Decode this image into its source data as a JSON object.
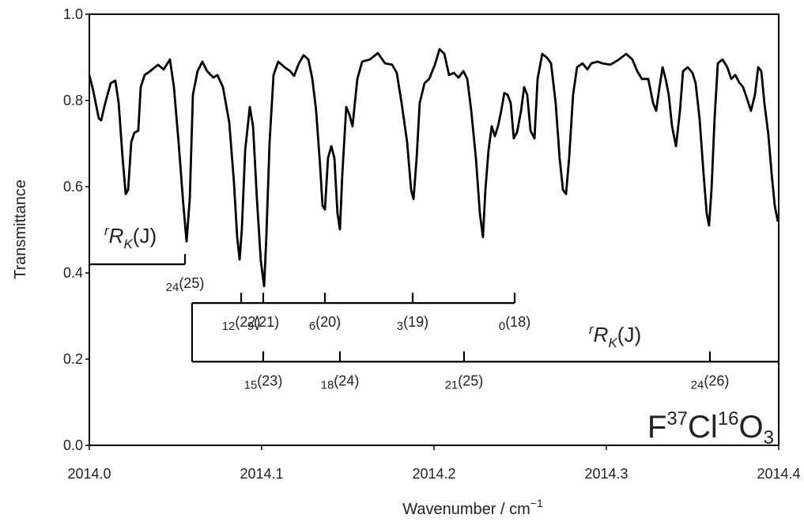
{
  "chart_data": {
    "type": "line",
    "ylabel": "Transmittance",
    "xlabel": {
      "main": "Wavenumber / cm",
      "sup": "−1"
    },
    "color": "#000000",
    "xlim": [
      2014.0,
      2014.4
    ],
    "xticks": [
      {
        "value": 2014,
        "label": "2014.0"
      },
      2014.1,
      2014.2,
      2014.3,
      2014.4
    ],
    "ylim": [
      0,
      1
    ],
    "yticks": [
      {
        "value": 0,
        "label": "0.0"
      },
      0.2,
      0.4,
      0.6,
      0.8,
      {
        "value": 1,
        "label": "1.0"
      }
    ],
    "x": [
      2014.0,
      2014.0023,
      2014.0055,
      2014.0069,
      2014.0092,
      2014.0124,
      2014.0151,
      2014.017,
      2014.0193,
      2014.0211,
      2014.0225,
      2014.0243,
      2014.0261,
      2014.0284,
      2014.0298,
      2014.0321,
      2014.0353,
      2014.0399,
      2014.0431,
      2014.0468,
      2014.0491,
      2014.0518,
      2014.0546,
      2014.0564,
      2014.0583,
      2014.0601,
      2014.0628,
      2014.0656,
      2014.0683,
      2014.072,
      2014.0743,
      2014.0775,
      2014.0812,
      2014.0839,
      2014.0858,
      2014.0872,
      2014.0885,
      2014.0904,
      2014.0931,
      2014.095,
      2014.0972,
      2014.0995,
      2014.1014,
      2014.1027,
      2014.1046,
      2014.1069,
      2014.1096,
      2014.1133,
      2014.1165,
      2014.1188,
      2014.1216,
      2014.1243,
      2014.1271,
      2014.1294,
      2014.1316,
      2014.1339,
      2014.1353,
      2014.1367,
      2014.1385,
      2014.1404,
      2014.1422,
      2014.144,
      2014.1454,
      2014.1468,
      2014.1491,
      2014.1509,
      2014.1527,
      2014.1555,
      2014.1583,
      2014.1628,
      2014.1674,
      2014.1716,
      2014.1757,
      2014.1784,
      2014.1812,
      2014.1844,
      2014.1867,
      2014.1881,
      2014.1899,
      2014.1917,
      2014.1945,
      2014.1972,
      2014.2005,
      2014.2032,
      2014.206,
      2014.2087,
      2014.2115,
      2014.2142,
      2014.217,
      2014.2193,
      2014.2216,
      2014.2243,
      2014.2266,
      2014.2284,
      2014.2298,
      2014.2316,
      2014.2335,
      2014.2353,
      2014.2371,
      2014.239,
      2014.2408,
      2014.2427,
      2014.2445,
      2014.2463,
      2014.2482,
      2014.2505,
      2014.2523,
      2014.2541,
      2014.256,
      2014.2583,
      2014.2601,
      2014.2628,
      2014.2656,
      2014.2679,
      2014.2706,
      2014.2729,
      2014.2748,
      2014.2766,
      2014.2784,
      2014.2807,
      2014.283,
      2014.2862,
      2014.289,
      2014.2913,
      2014.2949,
      2014.2977,
      2014.3023,
      2014.3069,
      2014.3115,
      2014.3151,
      2014.3179,
      2014.3206,
      2014.3243,
      2014.3271,
      2014.3289,
      2014.3307,
      2014.3326,
      2014.3344,
      2014.3362,
      2014.3381,
      2014.3404,
      2014.3427,
      2014.3445,
      2014.3472,
      2014.35,
      2014.3518,
      2014.3541,
      2014.3564,
      2014.3582,
      2014.3596,
      2014.361,
      2014.3628,
      2014.3647,
      2014.3674,
      2014.3702,
      2014.3725,
      2014.3748,
      2014.377,
      2014.3793,
      2014.3816,
      2014.3839,
      2014.3862,
      2014.3881,
      2014.3899,
      2014.3917,
      2014.394,
      2014.3959,
      2014.3977,
      2014.3995
    ],
    "values": [
      0.859,
      0.822,
      0.758,
      0.754,
      0.794,
      0.84,
      0.846,
      0.794,
      0.666,
      0.583,
      0.593,
      0.703,
      0.725,
      0.73,
      0.831,
      0.859,
      0.868,
      0.883,
      0.872,
      0.895,
      0.831,
      0.703,
      0.556,
      0.473,
      0.574,
      0.813,
      0.868,
      0.89,
      0.868,
      0.853,
      0.859,
      0.831,
      0.749,
      0.611,
      0.483,
      0.431,
      0.501,
      0.684,
      0.785,
      0.74,
      0.574,
      0.428,
      0.369,
      0.483,
      0.703,
      0.859,
      0.89,
      0.877,
      0.868,
      0.857,
      0.886,
      0.905,
      0.895,
      0.85,
      0.776,
      0.648,
      0.556,
      0.547,
      0.666,
      0.694,
      0.666,
      0.538,
      0.501,
      0.629,
      0.785,
      0.767,
      0.74,
      0.85,
      0.89,
      0.895,
      0.91,
      0.886,
      0.883,
      0.864,
      0.794,
      0.703,
      0.593,
      0.571,
      0.666,
      0.794,
      0.84,
      0.85,
      0.883,
      0.919,
      0.908,
      0.859,
      0.864,
      0.853,
      0.868,
      0.85,
      0.776,
      0.666,
      0.538,
      0.483,
      0.593,
      0.684,
      0.74,
      0.717,
      0.74,
      0.776,
      0.817,
      0.813,
      0.794,
      0.712,
      0.727,
      0.776,
      0.831,
      0.813,
      0.73,
      0.712,
      0.85,
      0.908,
      0.899,
      0.886,
      0.794,
      0.666,
      0.593,
      0.583,
      0.666,
      0.813,
      0.877,
      0.886,
      0.872,
      0.886,
      0.89,
      0.886,
      0.883,
      0.894,
      0.908,
      0.895,
      0.868,
      0.85,
      0.85,
      0.794,
      0.776,
      0.827,
      0.877,
      0.85,
      0.813,
      0.74,
      0.694,
      0.776,
      0.868,
      0.877,
      0.864,
      0.84,
      0.758,
      0.629,
      0.538,
      0.51,
      0.593,
      0.758,
      0.886,
      0.895,
      0.877,
      0.85,
      0.859,
      0.842,
      0.831,
      0.804,
      0.776,
      0.813,
      0.877,
      0.868,
      0.794,
      0.721,
      0.629,
      0.556,
      0.519
    ],
    "ladders": [
      {
        "label": {
          "sup": "r",
          "main": "R",
          "sub": "K",
          "rest": "(J)"
        },
        "y": 0.42,
        "from": 2014.0,
        "to": 2014.0555,
        "lines": [
          {
            "x": 2014.0555,
            "k": "24",
            "j": "(25)"
          }
        ]
      },
      {
        "y": 0.33,
        "from": 2014.0596,
        "to": 2014.2468,
        "lines": [
          {
            "x": 2014.0881,
            "k": "12",
            "j": "(22)"
          },
          {
            "x": 2014.1009,
            "k": "9",
            "j": "(21)"
          },
          {
            "x": 2014.1367,
            "k": "6",
            "j": "(20)"
          },
          {
            "x": 2014.1876,
            "k": "3",
            "j": "(19)"
          },
          {
            "x": 2014.2468,
            "k": "0",
            "j": "(18)"
          }
        ]
      },
      {
        "label": {
          "sup": "r",
          "main": "R",
          "sub": "K",
          "rest": "(J)"
        },
        "y": 0.194,
        "from": 2014.0596,
        "to": 2014.4,
        "lines": [
          {
            "x": 2014.1009,
            "k": "15",
            "j": "(23)"
          },
          {
            "x": 2014.1454,
            "k": "18",
            "j": "(24)"
          },
          {
            "x": 2014.2174,
            "k": "21",
            "j": "(25)"
          },
          {
            "x": 2014.3601,
            "k": "24",
            "j": "(26)"
          }
        ]
      }
    ],
    "molecule": [
      "F",
      "37",
      "Cl",
      "16",
      "O",
      "3"
    ]
  }
}
